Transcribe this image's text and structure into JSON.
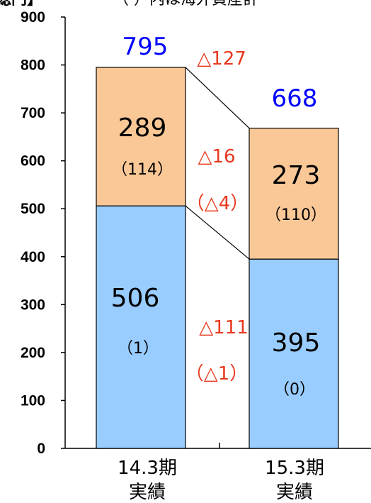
{
  "header": {
    "left": "総円】",
    "center": "（ ）内は海外資産計"
  },
  "colors": {
    "lower": "#99CCFF",
    "upper": "#FAC896",
    "total": "#0000FF",
    "delta": "#E8381E",
    "axis": "#000000"
  },
  "chart_data": {
    "type": "bar",
    "stacked": true,
    "ylim": [
      0,
      900
    ],
    "yticks": [
      "0",
      "100",
      "200",
      "300",
      "400",
      "500",
      "600",
      "700",
      "800",
      "900"
    ],
    "categories": [
      {
        "line1": "14.3期",
        "line2": "実績"
      },
      {
        "line1": "15.3期",
        "line2": "実績"
      }
    ],
    "series": [
      {
        "values": [
          506,
          395
        ],
        "labels": [
          "506",
          "395"
        ],
        "sublabels": [
          "（1）",
          "（0）"
        ]
      },
      {
        "values": [
          289,
          273
        ],
        "labels": [
          "289",
          "273"
        ],
        "sublabels": [
          "（114）",
          "（110）"
        ]
      }
    ],
    "totals": [
      "795",
      "668"
    ],
    "deltas": {
      "total": "△127",
      "upper": "△16",
      "upper_sub": "（△4）",
      "lower": "△111",
      "lower_sub": "（△1）"
    }
  }
}
